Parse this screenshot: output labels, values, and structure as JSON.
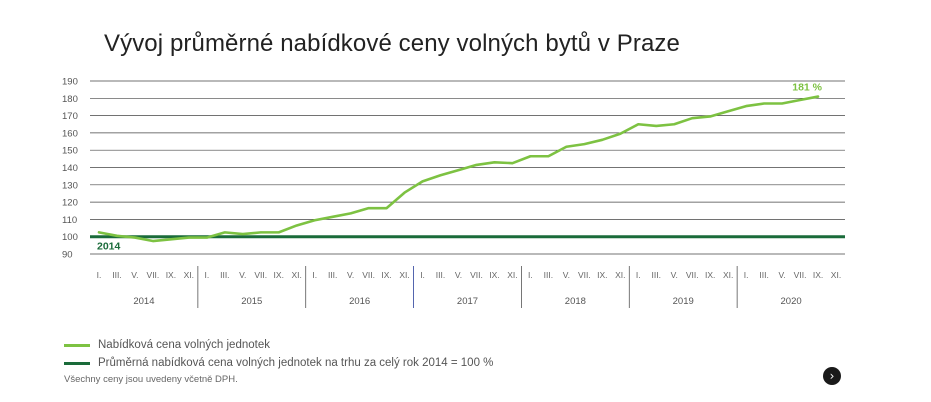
{
  "title": "Vývoj průměrné nabídkové ceny volných bytů v Praze",
  "chart_data": {
    "type": "line",
    "ylim": [
      90,
      190
    ],
    "yticks": [
      190,
      180,
      170,
      160,
      150,
      140,
      130,
      120,
      110,
      100,
      90
    ],
    "month_labels": [
      "I.",
      "III.",
      "V.",
      "VII.",
      "IX.",
      "XI."
    ],
    "years": [
      "2014",
      "2015",
      "2016",
      "2017",
      "2018",
      "2019",
      "2020"
    ],
    "series": [
      {
        "name": "Nabídková cena volných jednotek",
        "color": "#7dc242",
        "values": [
          102.5,
          100.5,
          99.5,
          97.5,
          98.5,
          99.5,
          99.5,
          102.5,
          101.5,
          102.5,
          102.5,
          106.5,
          109.5,
          111.5,
          113.5,
          116.5,
          116.5,
          125.5,
          132.0,
          135.5,
          138.5,
          141.5,
          143.0,
          142.5,
          146.5,
          146.5,
          152.0,
          153.5,
          156.0,
          159.5,
          165.0,
          164.0,
          165.0,
          168.5,
          169.5,
          172.5,
          175.5,
          177.0,
          177.0,
          179.0,
          181.0
        ]
      },
      {
        "name": "Průměrná nabídková cena volných jednotek na trhu za celý rok 2014 = 100 %",
        "color": "#1a6b3a",
        "values": [
          100
        ]
      }
    ],
    "annotations": {
      "end_label": "181 %",
      "baseline_label": "2014"
    }
  },
  "legend": [
    {
      "label": "Nabídková cena volných jednotek",
      "color": "#7dc242"
    },
    {
      "label": "Průměrná nabídková cena volných jednotek na trhu za celý rok 2014 = 100 %",
      "color": "#1a6b3a"
    }
  ],
  "note": "Všechny ceny jsou uvedeny včetně DPH.",
  "next_icon": "chevron-right-icon"
}
